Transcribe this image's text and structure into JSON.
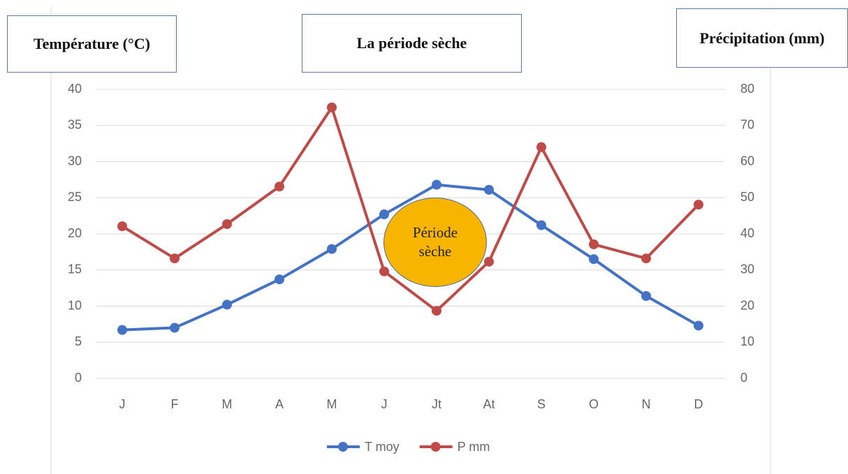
{
  "chart_data": {
    "type": "line",
    "title": "La période sèche",
    "ylabel": "Température (°C)",
    "y2label": "Précipitation (mm)",
    "annotations": [
      "Période sèche"
    ],
    "categories": [
      "J",
      "F",
      "M",
      "A",
      "M",
      "J",
      "Jt",
      "At",
      "S",
      "O",
      "N",
      "D"
    ],
    "series": [
      {
        "name": "T moy",
        "color": "#4472c4",
        "values": [
          6.7,
          7.0,
          10.2,
          13.7,
          17.9,
          22.7,
          26.8,
          26.1,
          21.2,
          16.5,
          11.4,
          7.3
        ]
      },
      {
        "name": "P mm",
        "color": "#be4b48",
        "axis": "y2",
        "values": [
          42.1,
          33.2,
          42.7,
          53.1,
          75.0,
          29.6,
          18.7,
          32.3,
          64.0,
          37.1,
          33.2,
          48.1
        ]
      }
    ],
    "ylim": [
      0,
      40
    ],
    "yticks": [
      0,
      5,
      10,
      15,
      20,
      25,
      30,
      35,
      40
    ],
    "y2lim": [
      0,
      80
    ],
    "y2ticks": [
      0,
      10,
      20,
      30,
      40,
      50,
      60,
      70,
      80
    ],
    "grid": true,
    "legend": "bottom"
  }
}
